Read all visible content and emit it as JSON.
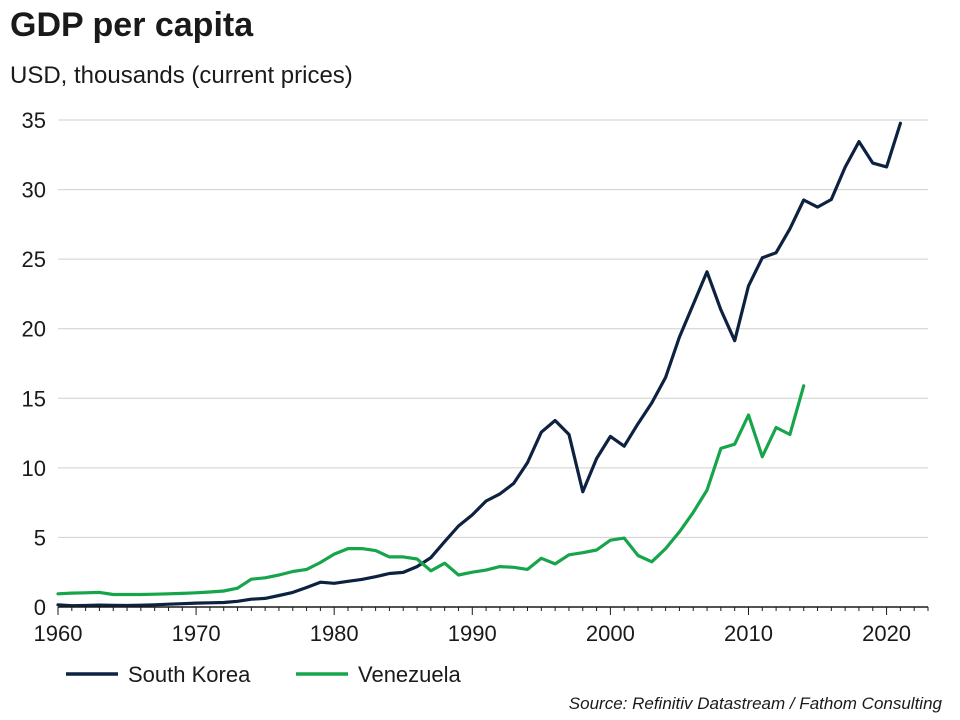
{
  "chart_data": {
    "type": "line",
    "title": "GDP per capita",
    "subtitle": "USD, thousands (current prices)",
    "xlabel": "",
    "ylabel": "",
    "xlim": [
      1960,
      2023
    ],
    "ylim": [
      0,
      35
    ],
    "xticks": [
      1960,
      1970,
      1980,
      1990,
      2000,
      2010,
      2020
    ],
    "yticks": [
      0,
      5,
      10,
      15,
      20,
      25,
      30,
      35
    ],
    "grid": "horizontal",
    "legend": "bottom",
    "source": "Source: Refinitiv Datastream / Fathom Consulting",
    "series": [
      {
        "name": "South Korea",
        "color": "#0d2240",
        "x": [
          1960,
          1961,
          1962,
          1963,
          1964,
          1965,
          1966,
          1967,
          1968,
          1969,
          1970,
          1971,
          1972,
          1973,
          1974,
          1975,
          1976,
          1977,
          1978,
          1979,
          1980,
          1981,
          1982,
          1983,
          1984,
          1985,
          1986,
          1987,
          1988,
          1989,
          1990,
          1991,
          1992,
          1993,
          1994,
          1995,
          1996,
          1997,
          1998,
          1999,
          2000,
          2001,
          2002,
          2003,
          2004,
          2005,
          2006,
          2007,
          2008,
          2009,
          2010,
          2011,
          2012,
          2013,
          2014,
          2015,
          2016,
          2017,
          2018,
          2019,
          2020,
          2021
        ],
        "values": [
          0.16,
          0.09,
          0.11,
          0.14,
          0.12,
          0.11,
          0.13,
          0.16,
          0.2,
          0.24,
          0.28,
          0.3,
          0.32,
          0.41,
          0.56,
          0.62,
          0.83,
          1.05,
          1.4,
          1.78,
          1.7,
          1.85,
          1.98,
          2.18,
          2.41,
          2.49,
          2.9,
          3.55,
          4.7,
          5.82,
          6.62,
          7.62,
          8.13,
          8.88,
          10.38,
          12.56,
          13.4,
          12.4,
          8.28,
          10.67,
          12.26,
          11.56,
          13.17,
          14.67,
          16.5,
          19.4,
          21.74,
          24.09,
          21.35,
          19.14,
          23.08,
          25.1,
          25.46,
          27.18,
          29.25,
          28.74,
          29.29,
          31.6,
          33.45,
          31.9,
          31.63,
          34.76
        ]
      },
      {
        "name": "Venezuela",
        "color": "#16a54a",
        "x": [
          1960,
          1961,
          1962,
          1963,
          1964,
          1965,
          1966,
          1967,
          1968,
          1969,
          1970,
          1971,
          1972,
          1973,
          1974,
          1975,
          1976,
          1977,
          1978,
          1979,
          1980,
          1981,
          1982,
          1983,
          1984,
          1985,
          1986,
          1987,
          1988,
          1989,
          1990,
          1991,
          1992,
          1993,
          1994,
          1995,
          1996,
          1997,
          1998,
          1999,
          2000,
          2001,
          2002,
          2003,
          2004,
          2005,
          2006,
          2007,
          2008,
          2009,
          2010,
          2011,
          2012,
          2013,
          2014
        ],
        "values": [
          0.95,
          1.0,
          1.02,
          1.05,
          0.9,
          0.9,
          0.9,
          0.92,
          0.95,
          0.98,
          1.02,
          1.08,
          1.15,
          1.35,
          2.0,
          2.1,
          2.3,
          2.55,
          2.7,
          3.2,
          3.8,
          4.2,
          4.2,
          4.05,
          3.6,
          3.6,
          3.45,
          2.6,
          3.15,
          2.3,
          2.5,
          2.65,
          2.9,
          2.85,
          2.7,
          3.5,
          3.1,
          3.75,
          3.9,
          4.1,
          4.8,
          4.95,
          3.7,
          3.25,
          4.2,
          5.4,
          6.8,
          8.4,
          11.4,
          11.7,
          13.8,
          10.8,
          12.9,
          12.4,
          15.9
        ]
      }
    ]
  }
}
